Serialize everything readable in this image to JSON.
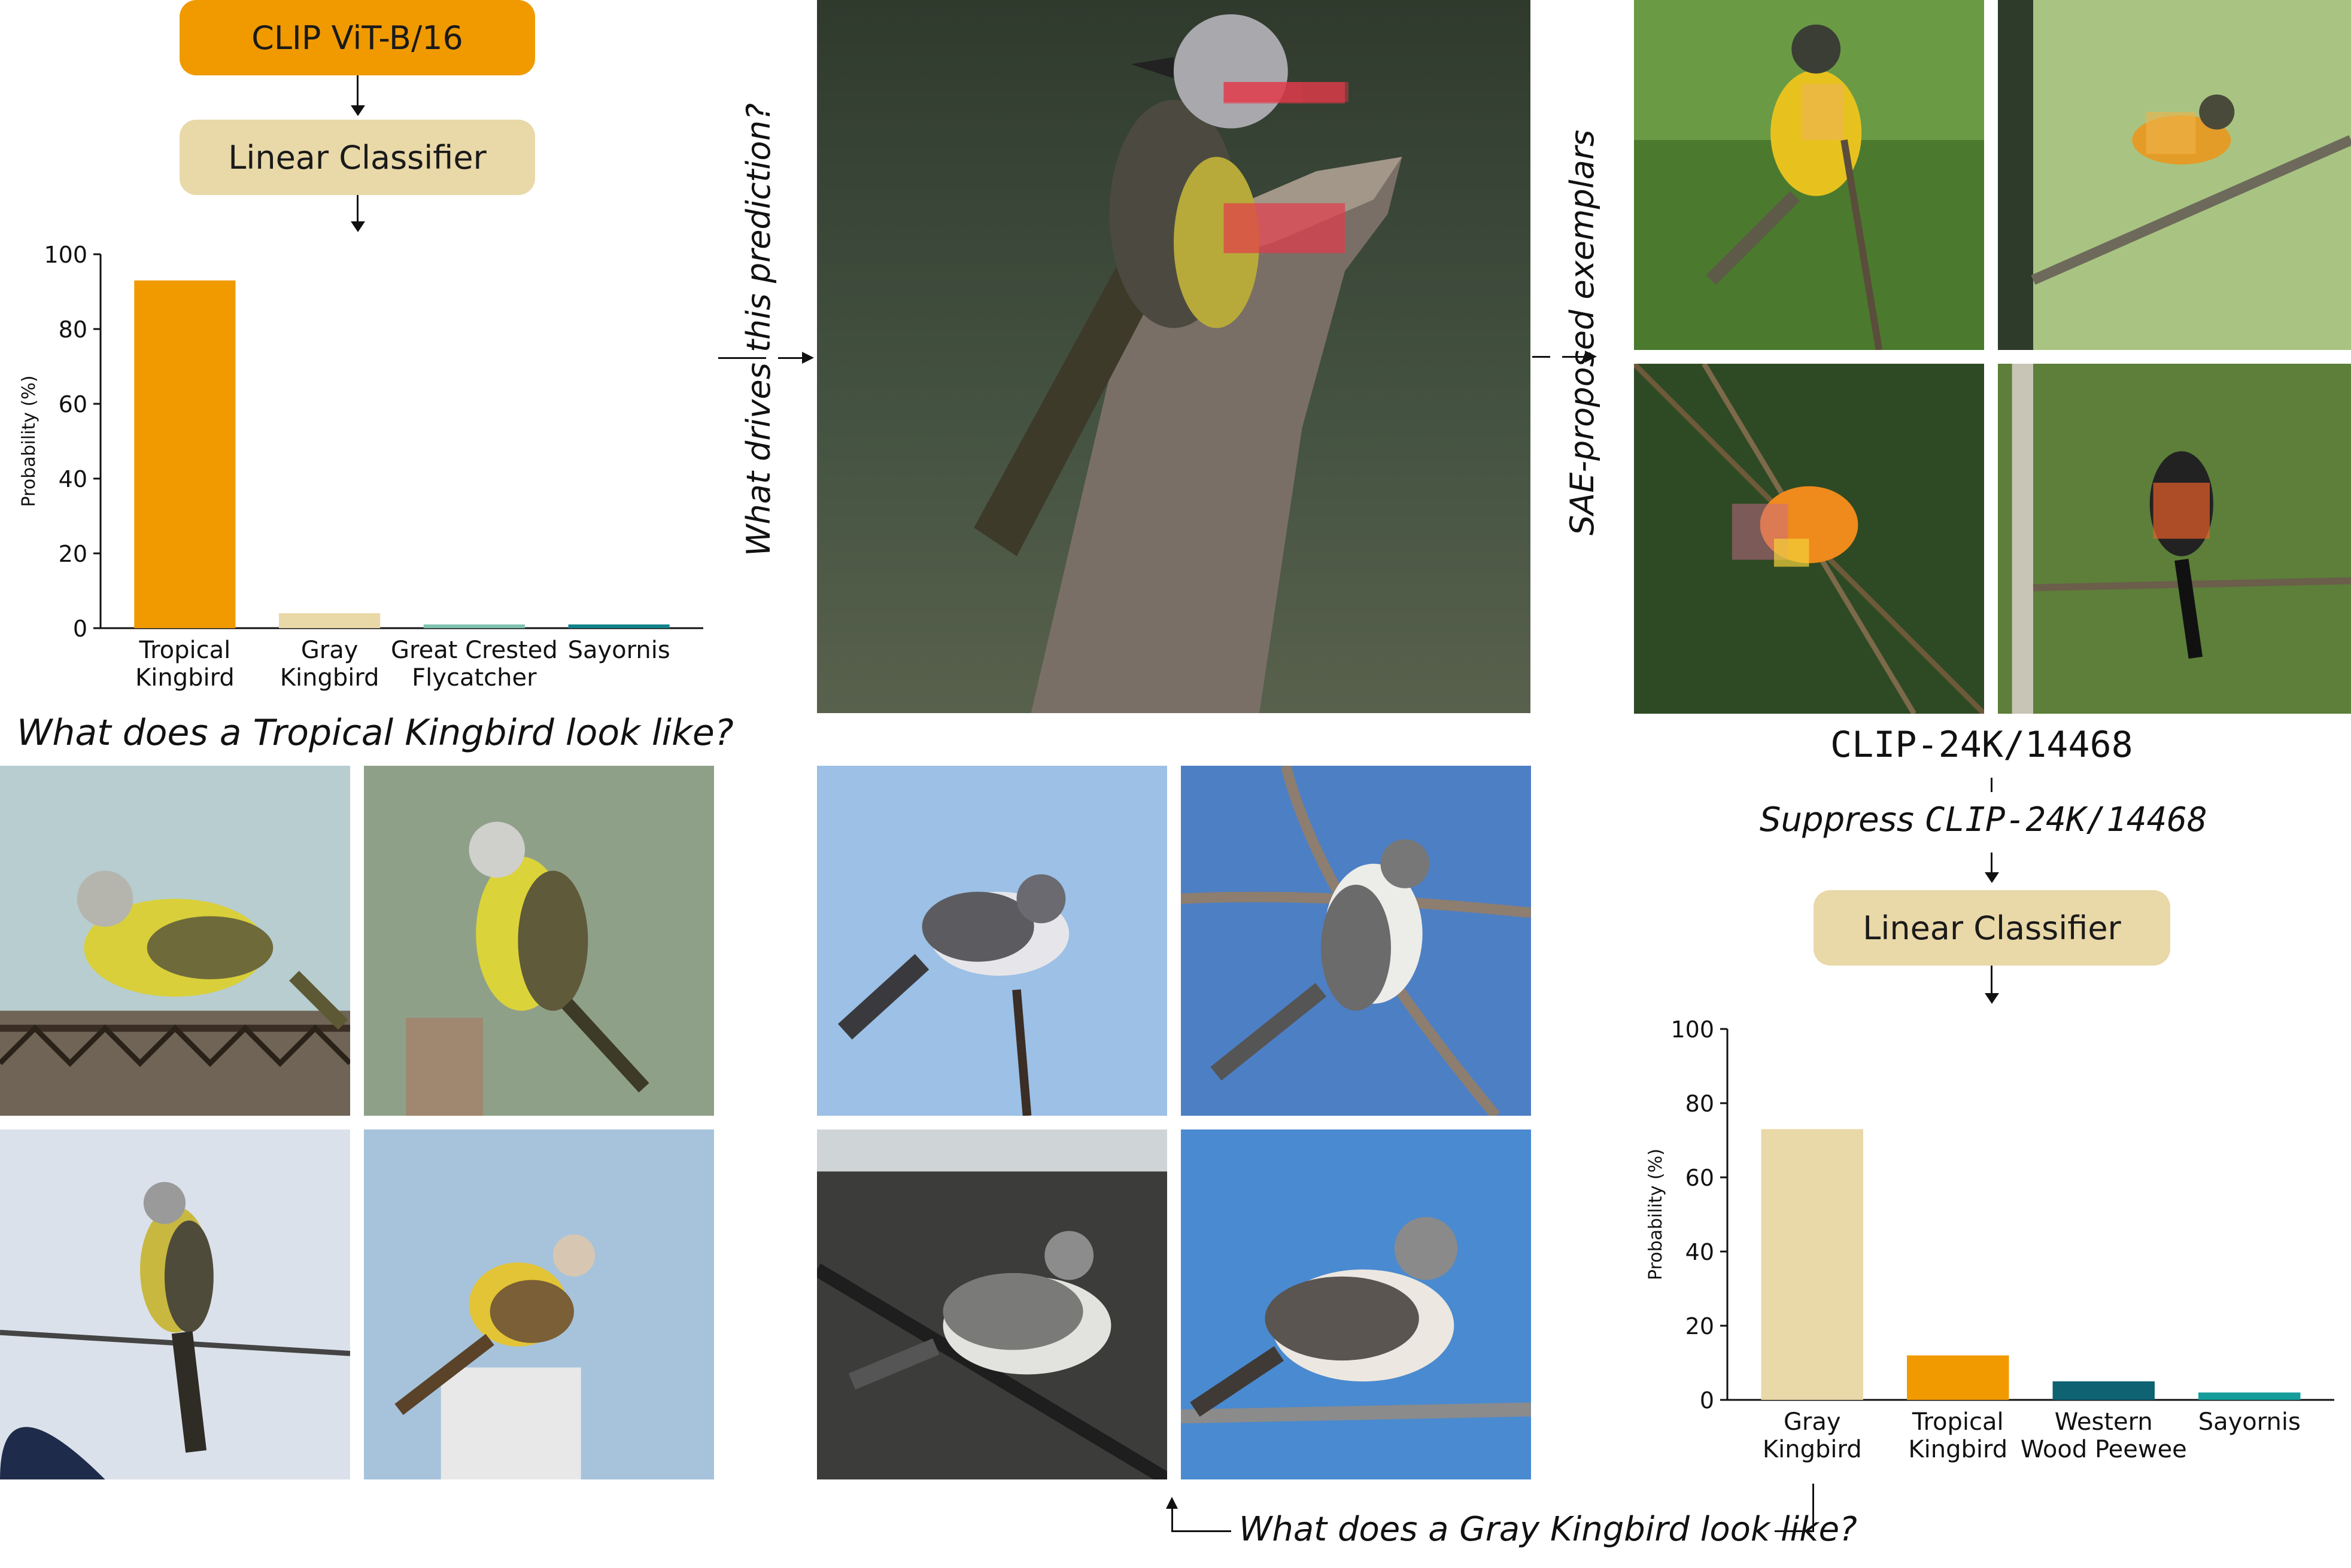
{
  "model_box": {
    "label": "CLIP ViT-B/16",
    "color": "#f09a00"
  },
  "classifier_top": {
    "label": "Linear Classifier",
    "color": "#e9d8a8"
  },
  "classifier_bottom": {
    "label": "Linear Classifier",
    "color": "#e9d8a8"
  },
  "question_drives": "What drives this prediction?",
  "sae_label": "SAE-proposed exemplars",
  "tropical_question": "What does a Tropical Kingbird look like?",
  "gray_question": "What does a Gray Kingbird look like?",
  "feature_id": "CLIP-24K/14468",
  "suppress": {
    "prefix": "Suppress",
    "feature": "CLIP-24K/14468"
  },
  "photos": {
    "main": "bird-photo-main-with-patch-highlights",
    "sae": [
      "yellow-breasted-bird-exemplar",
      "flycatcher-exemplar",
      "orange-bird-exemplar",
      "redstart-exemplar"
    ],
    "tropical": [
      "tropical-kingbird-on-fence",
      "tropical-kingbird-on-post",
      "tropical-kingbird-on-wire",
      "tropical-kingbird-on-pillar"
    ],
    "gray": [
      "gray-kingbird-on-stick",
      "gray-kingbird-on-branch",
      "gray-kingbird-on-wire",
      "gray-kingbird-on-cable"
    ]
  },
  "chart_data": [
    {
      "type": "bar",
      "categories": [
        [
          "Tropical",
          "Kingbird"
        ],
        [
          "Gray",
          "Kingbird"
        ],
        [
          "Great Crested",
          "Flycatcher"
        ],
        [
          "Sayornis"
        ]
      ],
      "values": [
        93,
        4,
        1,
        1
      ],
      "colors": [
        "#f09a00",
        "#e9d8a8",
        "#7fc2b0",
        "#11838a"
      ],
      "ylabel": "Probability (%)",
      "ylim": [
        0,
        100
      ],
      "yticks": [
        "0",
        "20",
        "40",
        "60",
        "80",
        "100"
      ]
    },
    {
      "type": "bar",
      "categories": [
        [
          "Gray",
          "Kingbird"
        ],
        [
          "Tropical",
          "Kingbird"
        ],
        [
          "Western",
          "Wood Peewee"
        ],
        [
          "Sayornis"
        ]
      ],
      "values": [
        73,
        12,
        5,
        2
      ],
      "colors": [
        "#e9d8a8",
        "#f09a00",
        "#0e6272",
        "#159d9b"
      ],
      "ylabel": "Probability (%)",
      "ylim": [
        0,
        100
      ],
      "yticks": [
        "0",
        "20",
        "40",
        "60",
        "80",
        "100"
      ]
    }
  ]
}
